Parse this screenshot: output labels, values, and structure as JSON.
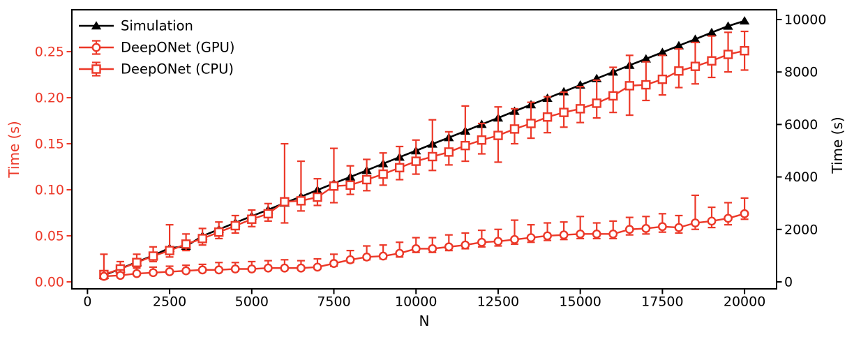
{
  "figure": {
    "background": "#ffffff"
  },
  "chart_data": {
    "type": "line",
    "title": "",
    "xlabel": "N",
    "ylabel_left": "Time (s)",
    "ylabel_right": "Time (s)",
    "grid": false,
    "legend_position": "upper left",
    "xlim": [
      -475,
      20975
    ],
    "ylim_left": [
      -0.0076,
      0.2955
    ],
    "ylim_right": [
      -266,
      10372
    ],
    "xticks": {
      "values": [
        0,
        2500,
        5000,
        7500,
        10000,
        12500,
        15000,
        17500,
        20000
      ],
      "labels": [
        "0",
        "2500",
        "5000",
        "7500",
        "10000",
        "12500",
        "15000",
        "17500",
        "20000"
      ]
    },
    "yticks_left": {
      "values": [
        0,
        0.05,
        0.1,
        0.15,
        0.2,
        0.25
      ],
      "labels": [
        "0.00",
        "0.05",
        "0.10",
        "0.15",
        "0.20",
        "0.25"
      ]
    },
    "yticks_right": {
      "values": [
        0,
        2000,
        4000,
        6000,
        8000,
        10000
      ],
      "labels": [
        "0",
        "2000",
        "4000",
        "6000",
        "8000",
        "10000"
      ]
    },
    "colors": {
      "simulation": "#000000",
      "deeponet": "#ec3828"
    },
    "x": [
      500,
      1000,
      1500,
      2000,
      2500,
      3000,
      3500,
      4000,
      4500,
      5000,
      5500,
      6000,
      6500,
      7000,
      7500,
      8000,
      8500,
      9000,
      9500,
      10000,
      10500,
      11000,
      11500,
      12000,
      12500,
      13000,
      13500,
      14000,
      14500,
      15000,
      15500,
      16000,
      16500,
      17000,
      17500,
      18000,
      18500,
      19000,
      19500,
      20000
    ],
    "series": [
      {
        "name": "Simulation",
        "axis": "right",
        "marker": "triangle",
        "color": "#000000",
        "values": [
          250,
          500,
          755,
          1005,
          1290,
          1355,
          1750,
          2000,
          2255,
          2505,
          2750,
          3005,
          3250,
          3500,
          3755,
          4000,
          4250,
          4505,
          4755,
          5000,
          5255,
          5500,
          5750,
          6005,
          6250,
          6505,
          6755,
          7000,
          7250,
          7505,
          7750,
          8000,
          8255,
          8500,
          8750,
          9005,
          9250,
          9505,
          9750,
          9950
        ]
      },
      {
        "name": "DeepONet (GPU)",
        "axis": "left",
        "marker": "circle",
        "color": "#ec3828",
        "values": [
          0.006,
          0.007,
          0.009,
          0.01,
          0.011,
          0.012,
          0.013,
          0.013,
          0.014,
          0.014,
          0.015,
          0.015,
          0.015,
          0.016,
          0.02,
          0.024,
          0.027,
          0.028,
          0.031,
          0.036,
          0.036,
          0.038,
          0.04,
          0.043,
          0.044,
          0.046,
          0.048,
          0.05,
          0.051,
          0.052,
          0.052,
          0.052,
          0.057,
          0.058,
          0.06,
          0.059,
          0.064,
          0.066,
          0.069,
          0.074
        ],
        "err_lo": [
          0.004,
          0.005,
          0.007,
          0.008,
          0.009,
          0.01,
          0.011,
          0.011,
          0.012,
          0.012,
          0.013,
          0.013,
          0.013,
          0.014,
          0.017,
          0.021,
          0.024,
          0.025,
          0.027,
          0.032,
          0.032,
          0.034,
          0.036,
          0.038,
          0.039,
          0.041,
          0.043,
          0.045,
          0.046,
          0.047,
          0.047,
          0.047,
          0.051,
          0.052,
          0.054,
          0.053,
          0.057,
          0.059,
          0.062,
          0.068
        ],
        "err_hi": [
          0.012,
          0.013,
          0.015,
          0.016,
          0.017,
          0.018,
          0.019,
          0.021,
          0.021,
          0.022,
          0.023,
          0.024,
          0.023,
          0.025,
          0.03,
          0.034,
          0.039,
          0.04,
          0.043,
          0.048,
          0.048,
          0.051,
          0.053,
          0.056,
          0.057,
          0.067,
          0.062,
          0.064,
          0.065,
          0.071,
          0.064,
          0.066,
          0.07,
          0.071,
          0.074,
          0.072,
          0.094,
          0.081,
          0.086,
          0.091
        ]
      },
      {
        "name": "DeepONet (CPU)",
        "axis": "left",
        "marker": "square",
        "color": "#ec3828",
        "values": [
          0.008,
          0.014,
          0.021,
          0.028,
          0.034,
          0.041,
          0.047,
          0.054,
          0.061,
          0.068,
          0.074,
          0.087,
          0.088,
          0.092,
          0.104,
          0.105,
          0.111,
          0.117,
          0.124,
          0.131,
          0.136,
          0.141,
          0.148,
          0.154,
          0.159,
          0.166,
          0.172,
          0.179,
          0.184,
          0.188,
          0.194,
          0.202,
          0.213,
          0.214,
          0.22,
          0.229,
          0.234,
          0.24,
          0.247,
          0.251
        ],
        "err_lo": [
          0.003,
          0.009,
          0.015,
          0.022,
          0.027,
          0.034,
          0.04,
          0.047,
          0.053,
          0.06,
          0.066,
          0.064,
          0.077,
          0.083,
          0.086,
          0.095,
          0.099,
          0.105,
          0.111,
          0.117,
          0.121,
          0.127,
          0.131,
          0.139,
          0.13,
          0.15,
          0.156,
          0.162,
          0.168,
          0.173,
          0.178,
          0.184,
          0.181,
          0.197,
          0.203,
          0.211,
          0.215,
          0.222,
          0.228,
          0.23
        ],
        "err_hi": [
          0.03,
          0.022,
          0.03,
          0.038,
          0.062,
          0.052,
          0.058,
          0.065,
          0.072,
          0.078,
          0.085,
          0.15,
          0.131,
          0.112,
          0.145,
          0.126,
          0.133,
          0.14,
          0.147,
          0.154,
          0.176,
          0.163,
          0.191,
          0.172,
          0.19,
          0.188,
          0.195,
          0.201,
          0.206,
          0.212,
          0.219,
          0.233,
          0.246,
          0.239,
          0.246,
          0.253,
          0.26,
          0.267,
          0.271,
          0.272
        ]
      }
    ]
  }
}
